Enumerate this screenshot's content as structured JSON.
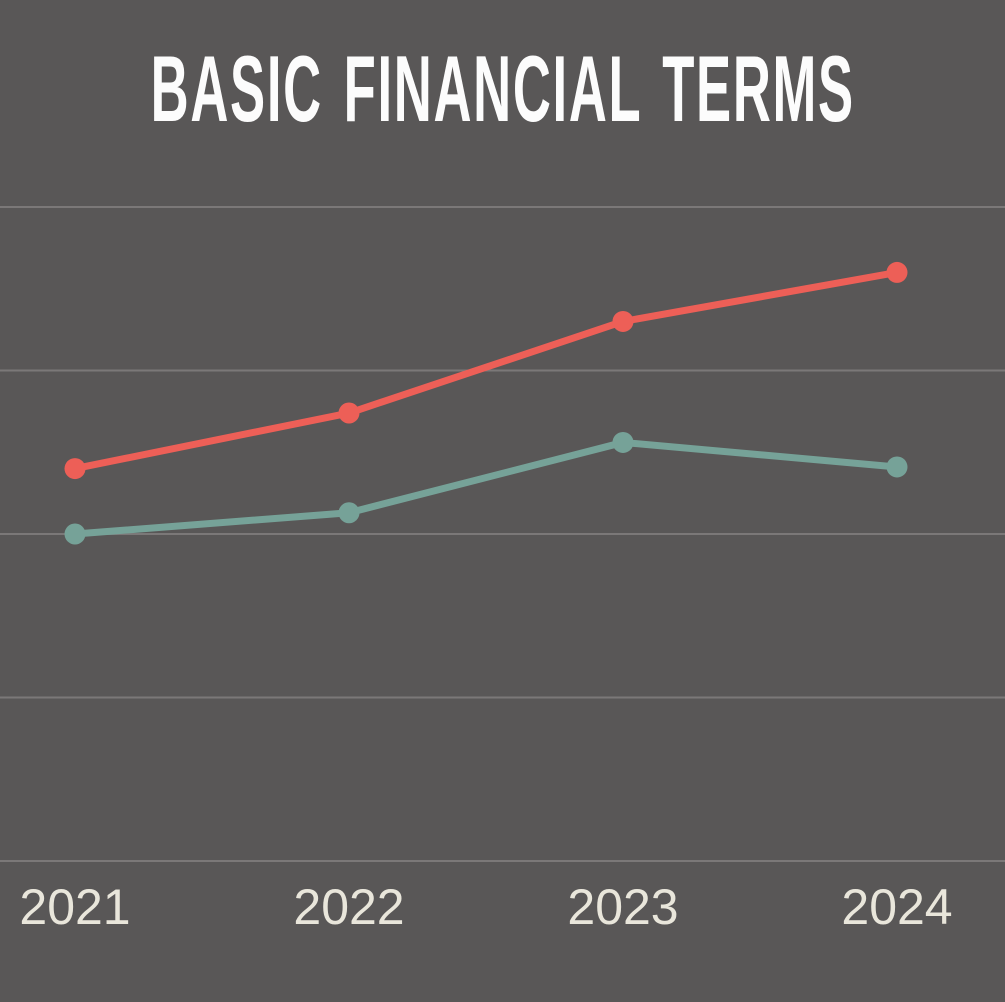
{
  "title": "BASIC FINANCIAL TERMS",
  "colors": {
    "background": "#595757",
    "gridline": "#7b7878",
    "title_text": "#fcfcfc",
    "axis_label_text": "#e9e6db",
    "series_red": "#ed5f57",
    "series_teal": "#76a298"
  },
  "chart_data": {
    "type": "line",
    "title": "BASIC FINANCIAL TERMS",
    "categories": [
      "2021",
      "2022",
      "2023",
      "2024"
    ],
    "series": [
      {
        "name": "red-line",
        "color": "#ed5f57",
        "values": [
          2.4,
          2.74,
          3.3,
          3.6
        ]
      },
      {
        "name": "teal-line",
        "color": "#76a298",
        "values": [
          2.0,
          2.13,
          2.56,
          2.41
        ]
      }
    ],
    "xlabel": "",
    "ylabel": "",
    "x_tick_labels": [
      "2021",
      "2022",
      "2023",
      "2024"
    ],
    "y_tick_labels": [],
    "ylim": [
      0,
      4.28
    ],
    "gridline_values": [
      0,
      1,
      2,
      3,
      4
    ],
    "grid": true,
    "legend_position": "none",
    "markers": true,
    "value_units": "relative gridline units (y-axis is unlabeled in source; bottom gridline = 0, one unit per gridline step)"
  }
}
